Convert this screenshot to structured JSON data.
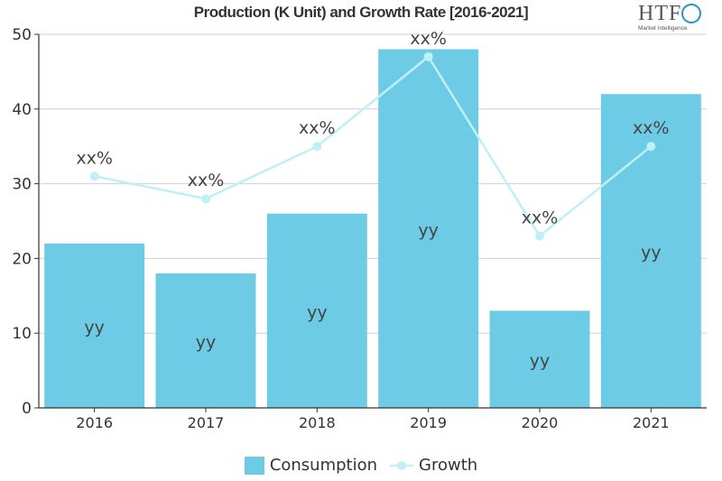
{
  "chart_data": {
    "type": "bar",
    "title": "Production (K Unit) and Growth Rate [2016-2021]",
    "categories": [
      "2016",
      "2017",
      "2018",
      "2019",
      "2020",
      "2021"
    ],
    "ylim": [
      0,
      50
    ],
    "yticks": [
      0,
      10,
      20,
      30,
      40,
      50
    ],
    "grid": true,
    "legend_position": "bottom",
    "series": [
      {
        "name": "Consumption",
        "kind": "bar",
        "color": "#6dcbe6",
        "values": [
          22,
          18,
          26,
          48,
          13,
          42
        ],
        "labels": [
          "yy",
          "yy",
          "yy",
          "yy",
          "yy",
          "yy"
        ]
      },
      {
        "name": "Growth",
        "kind": "line",
        "color": "#bff0f5",
        "values": [
          31,
          28,
          35,
          47,
          23,
          35
        ],
        "labels": [
          "xx%",
          "xx%",
          "xx%",
          "xx%",
          "xx%",
          "xx%"
        ]
      }
    ]
  },
  "logo": {
    "text": "HTF",
    "subtext": "Market Intelligence"
  }
}
